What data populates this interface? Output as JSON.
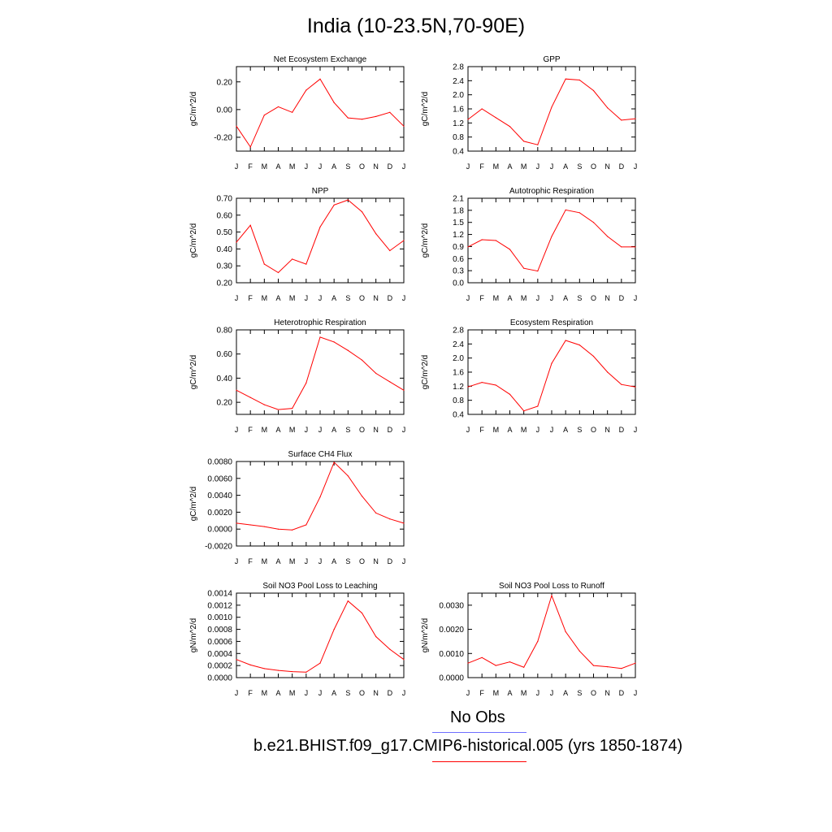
{
  "title": "India (10-23.5N,70-90E)",
  "colors": {
    "model_line": "#ff0000",
    "obs_line": "#6f6fff",
    "axis": "#000000"
  },
  "legend": [
    {
      "label": "No Obs",
      "color": "#6f6fff"
    },
    {
      "label": "b.e21.BHIST.f09_g17.CMIP6-historical.005 (yrs 1850-1874)",
      "color": "#ff0000"
    }
  ],
  "chart_data": [
    {
      "type": "line",
      "title": "Net Ecosystem Exchange",
      "ylabel": "gC/m^2/d",
      "categories": [
        "J",
        "F",
        "M",
        "A",
        "M",
        "J",
        "J",
        "A",
        "S",
        "O",
        "N",
        "D",
        "J"
      ],
      "ylim": [
        -0.3,
        0.31
      ],
      "yticks": [
        -0.2,
        0.0,
        0.2
      ],
      "ytick_labels": [
        "-0.20",
        "0.00",
        "0.20"
      ],
      "series": [
        {
          "values": [
            -0.12,
            -0.27,
            -0.04,
            0.02,
            -0.02,
            0.14,
            0.22,
            0.05,
            -0.06,
            -0.07,
            -0.05,
            -0.02,
            -0.12
          ]
        }
      ]
    },
    {
      "type": "line",
      "title": "GPP",
      "ylabel": "gC/m^2/d",
      "categories": [
        "J",
        "F",
        "M",
        "A",
        "M",
        "J",
        "J",
        "A",
        "S",
        "O",
        "N",
        "D",
        "J"
      ],
      "ylim": [
        0.4,
        2.8
      ],
      "yticks": [
        0.4,
        0.8,
        1.2,
        1.6,
        2.0,
        2.4,
        2.8
      ],
      "ytick_labels": [
        "0.4",
        "0.8",
        "1.2",
        "1.6",
        "2.0",
        "2.4",
        "2.8"
      ],
      "series": [
        {
          "values": [
            1.3,
            1.6,
            1.35,
            1.1,
            0.68,
            0.58,
            1.65,
            2.45,
            2.42,
            2.12,
            1.63,
            1.28,
            1.32
          ]
        }
      ]
    },
    {
      "type": "line",
      "title": "NPP",
      "ylabel": "gC/m^2/d",
      "categories": [
        "J",
        "F",
        "M",
        "A",
        "M",
        "J",
        "J",
        "A",
        "S",
        "O",
        "N",
        "D",
        "J"
      ],
      "ylim": [
        0.2,
        0.7
      ],
      "yticks": [
        0.2,
        0.3,
        0.4,
        0.5,
        0.6,
        0.7
      ],
      "ytick_labels": [
        "0.20",
        "0.30",
        "0.40",
        "0.50",
        "0.60",
        "0.70"
      ],
      "series": [
        {
          "values": [
            0.44,
            0.54,
            0.31,
            0.26,
            0.34,
            0.31,
            0.53,
            0.66,
            0.69,
            0.62,
            0.49,
            0.39,
            0.45
          ]
        }
      ]
    },
    {
      "type": "line",
      "title": "Autotrophic Respiration",
      "ylabel": "gC/m^2/d",
      "categories": [
        "J",
        "F",
        "M",
        "A",
        "M",
        "J",
        "J",
        "A",
        "S",
        "O",
        "N",
        "D",
        "J"
      ],
      "ylim": [
        0.0,
        2.1
      ],
      "yticks": [
        0.0,
        0.3,
        0.6,
        0.9,
        1.2,
        1.5,
        1.8,
        2.1
      ],
      "ytick_labels": [
        "0.0",
        "0.3",
        "0.6",
        "0.9",
        "1.2",
        "1.5",
        "1.8",
        "2.1"
      ],
      "series": [
        {
          "values": [
            0.89,
            1.07,
            1.05,
            0.83,
            0.36,
            0.29,
            1.15,
            1.81,
            1.74,
            1.5,
            1.15,
            0.89,
            0.89
          ]
        }
      ]
    },
    {
      "type": "line",
      "title": "Heterotrophic Respiration",
      "ylabel": "gC/m^2/d",
      "categories": [
        "J",
        "F",
        "M",
        "A",
        "M",
        "J",
        "J",
        "A",
        "S",
        "O",
        "N",
        "D",
        "J"
      ],
      "ylim": [
        0.1,
        0.8
      ],
      "yticks": [
        0.2,
        0.4,
        0.6,
        0.8
      ],
      "ytick_labels": [
        "0.20",
        "0.40",
        "0.60",
        "0.80"
      ],
      "series": [
        {
          "values": [
            0.3,
            0.24,
            0.18,
            0.14,
            0.15,
            0.36,
            0.74,
            0.7,
            0.63,
            0.55,
            0.44,
            0.37,
            0.3
          ]
        }
      ]
    },
    {
      "type": "line",
      "title": "Ecosystem Respiration",
      "ylabel": "gC/m^2/d",
      "categories": [
        "J",
        "F",
        "M",
        "A",
        "M",
        "J",
        "J",
        "A",
        "S",
        "O",
        "N",
        "D",
        "J"
      ],
      "ylim": [
        0.4,
        2.8
      ],
      "yticks": [
        0.4,
        0.8,
        1.2,
        1.6,
        2.0,
        2.4,
        2.8
      ],
      "ytick_labels": [
        "0.4",
        "0.8",
        "1.2",
        "1.6",
        "2.0",
        "2.4",
        "2.8"
      ],
      "series": [
        {
          "values": [
            1.18,
            1.31,
            1.23,
            0.97,
            0.5,
            0.63,
            1.85,
            2.5,
            2.37,
            2.05,
            1.6,
            1.25,
            1.18
          ]
        }
      ]
    },
    {
      "type": "line",
      "title": "Surface CH4 Flux",
      "ylabel": "gC/m^2/d",
      "categories": [
        "J",
        "F",
        "M",
        "A",
        "M",
        "J",
        "J",
        "A",
        "S",
        "O",
        "N",
        "D",
        "J"
      ],
      "ylim": [
        -0.002,
        0.008
      ],
      "yticks": [
        -0.002,
        0.0,
        0.002,
        0.004,
        0.006,
        0.008
      ],
      "ytick_labels": [
        "-0.0020",
        "0.0000",
        "0.0020",
        "0.0040",
        "0.0060",
        "0.0080"
      ],
      "series": [
        {
          "values": [
            0.0007,
            0.0005,
            0.0003,
            0.0,
            -0.0001,
            0.0005,
            0.0038,
            0.0079,
            0.0063,
            0.0039,
            0.0019,
            0.0012,
            0.0007
          ]
        }
      ]
    },
    {
      "type": "line",
      "title": "Soil NO3 Pool Loss to Leaching",
      "ylabel": "gN/m^2/d",
      "categories": [
        "J",
        "F",
        "M",
        "A",
        "M",
        "J",
        "J",
        "A",
        "S",
        "O",
        "N",
        "D",
        "J"
      ],
      "ylim": [
        0.0,
        0.0014
      ],
      "yticks": [
        0.0,
        0.0002,
        0.0004,
        0.0006,
        0.0008,
        0.001,
        0.0012,
        0.0014
      ],
      "ytick_labels": [
        "0.0000",
        "0.0002",
        "0.0004",
        "0.0006",
        "0.0008",
        "0.0010",
        "0.0012",
        "0.0014"
      ],
      "series": [
        {
          "values": [
            0.0003,
            0.00021,
            0.00015,
            0.00012,
            0.0001,
            9e-05,
            0.00024,
            0.0008,
            0.00127,
            0.00107,
            0.00068,
            0.00047,
            0.0003
          ]
        }
      ]
    },
    {
      "type": "line",
      "title": "Soil NO3 Pool Loss to Runoff",
      "ylabel": "gN/m^2/d",
      "categories": [
        "J",
        "F",
        "M",
        "A",
        "M",
        "J",
        "J",
        "A",
        "S",
        "O",
        "N",
        "D",
        "J"
      ],
      "ylim": [
        0.0,
        0.0035
      ],
      "yticks": [
        0.0,
        0.001,
        0.002,
        0.003
      ],
      "ytick_labels": [
        "0.0000",
        "0.0010",
        "0.0020",
        "0.0030"
      ],
      "series": [
        {
          "values": [
            0.0006,
            0.00083,
            0.0005,
            0.00065,
            0.00043,
            0.0015,
            0.0034,
            0.0019,
            0.0011,
            0.0005,
            0.00045,
            0.00038,
            0.0006
          ]
        }
      ]
    }
  ]
}
